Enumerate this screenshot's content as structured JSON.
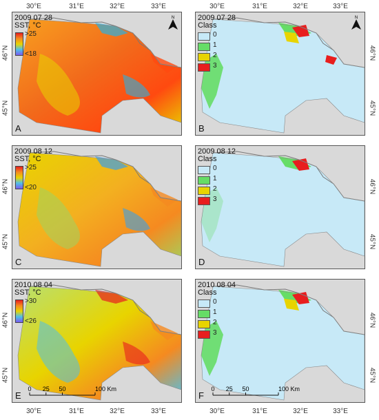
{
  "axes": {
    "lon_labels": [
      "30°E",
      "31°E",
      "32°E",
      "33°E"
    ],
    "lat_labels": [
      "46°N",
      "45°N"
    ]
  },
  "panels": [
    {
      "id": "A",
      "date": "2009 07 28",
      "legend_title": "SST, °C",
      "legend_type": "sst",
      "colorbar": {
        "high": ">25",
        "low": "<18"
      },
      "theme": "warm",
      "north_arrow": true
    },
    {
      "id": "B",
      "date": "2009 07 28",
      "legend_title": "Class",
      "legend_type": "class",
      "north_arrow": true,
      "hot": 3
    },
    {
      "id": "C",
      "date": "2009 08 12",
      "legend_title": "SST, °C",
      "legend_type": "sst",
      "colorbar": {
        "high": ">25",
        "low": "<20"
      },
      "theme": "mild"
    },
    {
      "id": "D",
      "date": "2009 08 12",
      "legend_title": "Class",
      "legend_type": "class",
      "hot": 1
    },
    {
      "id": "E",
      "date": "2010 08 04",
      "legend_title": "SST, °C",
      "legend_type": "sst",
      "colorbar": {
        "high": ">30",
        "low": "<26"
      },
      "theme": "yellow",
      "scalebar": true
    },
    {
      "id": "F",
      "date": "2010 08 04",
      "legend_title": "Class",
      "legend_type": "class",
      "scalebar": true,
      "hot": 2
    }
  ],
  "class_legend": [
    {
      "label": "0",
      "color": "#c7e9f7"
    },
    {
      "label": "1",
      "color": "#66dd66"
    },
    {
      "label": "2",
      "color": "#e8d400"
    },
    {
      "label": "3",
      "color": "#e81e1e"
    }
  ],
  "scale_bar": {
    "labels": [
      "0",
      "25",
      "50",
      "100 Km"
    ],
    "km": [
      0,
      25,
      50,
      100
    ]
  },
  "north_label": "N",
  "colors": {
    "land": "#d9d9d9",
    "class0": "#c7e9f7",
    "class1": "#66dd66",
    "class2": "#e8d400",
    "class3": "#e81e1e"
  }
}
